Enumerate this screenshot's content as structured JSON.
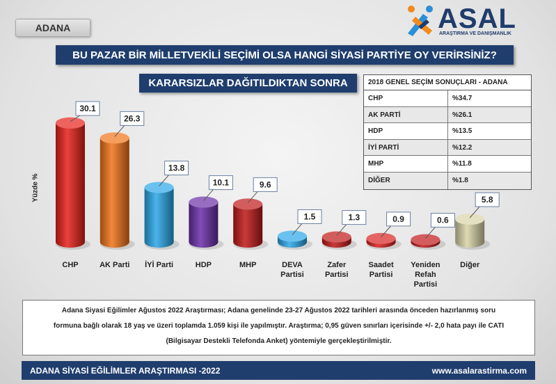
{
  "header": {
    "region": "ADANA",
    "logo_word": "ASAL",
    "logo_sub": "ARAŞTIRMA VE DANIŞMANLIK",
    "question": "BU PAZAR BİR MİLLETVEKİLİ SEÇİMİ OLSA HANGİ SİYASİ PARTİYE OY VERİRSİNİZ?",
    "subtitle": "KARARSIZLAR DAĞITILDIKTAN SONRA"
  },
  "results_2018": {
    "title": "2018 GENEL SEÇİM SONUÇLARI - ADANA",
    "rows": [
      {
        "party": "CHP",
        "value": "%34.7"
      },
      {
        "party": "AK PARTİ",
        "value": "%26.1"
      },
      {
        "party": "HDP",
        "value": "%13.5"
      },
      {
        "party": "İYİ PARTİ",
        "value": "%12.2"
      },
      {
        "party": "MHP",
        "value": "%11.8"
      },
      {
        "party": "DİĞER",
        "value": "%1.8"
      }
    ]
  },
  "chart_data": {
    "type": "bar",
    "ylabel": "Yüzde %",
    "ylim": [
      0,
      32
    ],
    "grid": false,
    "legend": "none",
    "categories": [
      "CHP",
      "AK Parti",
      "İYİ Parti",
      "HDP",
      "MHP",
      "DEVA Partisi",
      "Zafer Partisi",
      "Saadet Partisi",
      "Yeniden Refah Partisi",
      "Diğer"
    ],
    "category_lines": [
      [
        "CHP"
      ],
      [
        "AK Parti"
      ],
      [
        "İYİ Parti"
      ],
      [
        "HDP"
      ],
      [
        "MHP"
      ],
      [
        "DEVA",
        "Partisi"
      ],
      [
        "Zafer",
        "Partisi"
      ],
      [
        "Saadet",
        "Partisi"
      ],
      [
        "Yeniden",
        "Refah",
        "Partisi"
      ],
      [
        "Diğer"
      ]
    ],
    "values": [
      30.1,
      26.3,
      13.8,
      10.1,
      9.6,
      1.5,
      1.3,
      0.9,
      0.6,
      5.8
    ],
    "value_labels": [
      "30.1",
      "26.3",
      "13.8",
      "10.1",
      "9.6",
      "1.5",
      "1.3",
      "0.9",
      "0.6",
      "5.8"
    ],
    "colors": [
      "#e8201a",
      "#f07318",
      "#2aa7e8",
      "#6a2ea8",
      "#c01818",
      "#2aa7e8",
      "#c01818",
      "#d82020",
      "#c01818",
      "#d8d3a8"
    ]
  },
  "note": {
    "lines": [
      "Adana Siyasi Eğilimler Ağustos 2022 Araştırması; Adana genelinde 23-27 Ağustos 2022 tarihleri arasında önceden hazırlanmış soru",
      "formuna bağlı olarak 18 yaş ve üzeri toplamda 1.059 kişi ile yapılmıştır. Araştırma; 0,95 güven sınırları içerisinde +/- 2,0 hata payı ile CATI",
      "(Bilgisayar Destekli Telefonda Anket) yöntemiyle gerçekleştirilmiştir."
    ]
  },
  "footer": {
    "left": "ADANA SİYASİ EĞİLİMLER ARAŞTIRMASI -2022",
    "right": "www.asalarastirma.com"
  }
}
